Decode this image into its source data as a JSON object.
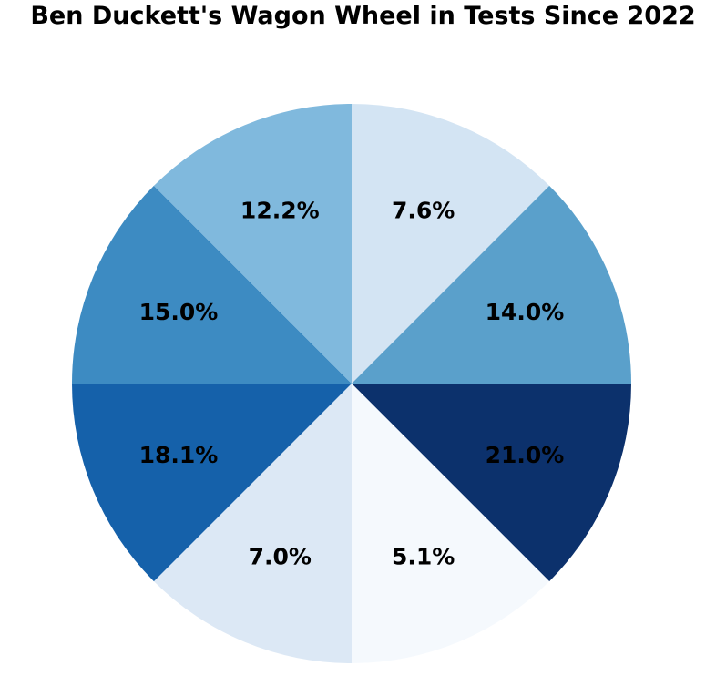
{
  "header": {
    "title": "Ben Duckett's Wagon Wheel in Tests Since 2022"
  },
  "chart_data": {
    "type": "pie",
    "title": "Ben Duckett's Wagon Wheel in Tests Since 2022",
    "subtitle": "",
    "description": "Wagon wheel: 8 equal 45-degree field sectors, labels show percentage of runs per sector, darker blue means higher percentage",
    "equal_angle_sectors": true,
    "sector_angle_deg": 45,
    "start_angle_deg": 0,
    "direction": "clockwise",
    "legend": "none",
    "label_color": "#000000",
    "background_color": "#ffffff",
    "segments": [
      {
        "label": "7.6%",
        "value": 7.6,
        "color": "#d3e4f3"
      },
      {
        "label": "14.0%",
        "value": 14.0,
        "color": "#5aa0cb"
      },
      {
        "label": "21.0%",
        "value": 21.0,
        "color": "#0c316c"
      },
      {
        "label": "5.1%",
        "value": 5.1,
        "color": "#f5f9fd"
      },
      {
        "label": "7.0%",
        "value": 7.0,
        "color": "#dce8f5"
      },
      {
        "label": "18.1%",
        "value": 18.1,
        "color": "#1561aa"
      },
      {
        "label": "15.0%",
        "value": 15.0,
        "color": "#3d8bc2"
      },
      {
        "label": "12.2%",
        "value": 12.2,
        "color": "#80b9dd"
      }
    ]
  }
}
